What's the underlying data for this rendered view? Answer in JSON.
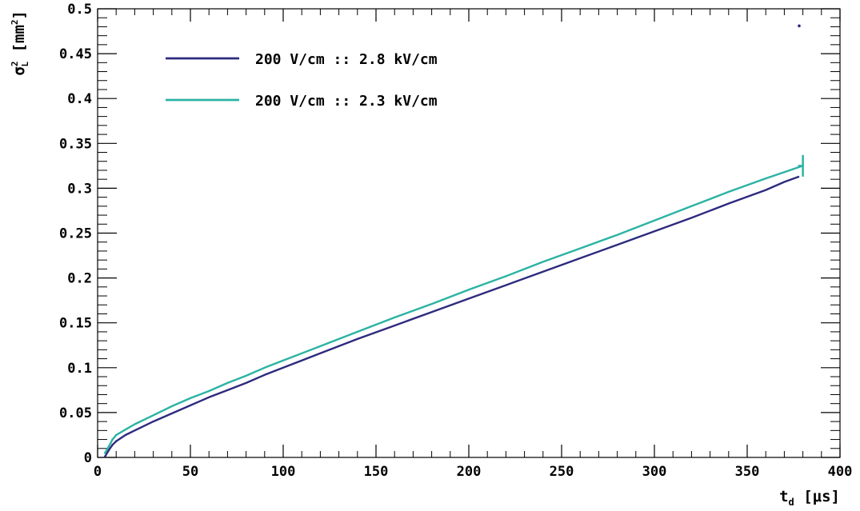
{
  "chart_data": {
    "type": "line",
    "xlabel": {
      "main": "t",
      "sub": "d",
      "unit": "[μs]"
    },
    "ylabel": {
      "main": "σ",
      "sup": "2",
      "sub": "L",
      "unit_open": "[mm",
      "unit_sup": "2",
      "unit_close": "]"
    },
    "xlim": [
      0,
      400
    ],
    "ylim": [
      0,
      0.5
    ],
    "xticks": [
      0,
      50,
      100,
      150,
      200,
      250,
      300,
      350,
      400
    ],
    "xtick_labels": [
      "0",
      "50",
      "100",
      "150",
      "200",
      "250",
      "300",
      "350",
      "400"
    ],
    "yticks": [
      0,
      0.05,
      0.1,
      0.15,
      0.2,
      0.25,
      0.3,
      0.35,
      0.4,
      0.45,
      0.5
    ],
    "ytick_labels": [
      "0",
      "0.05",
      "0.1",
      "0.15",
      "0.2",
      "0.25",
      "0.3",
      "0.35",
      "0.4",
      "0.45",
      "0.5"
    ],
    "grid": false,
    "legend_position": "top-left",
    "series": [
      {
        "name": "200 V/cm :: 2.8 kV/cm",
        "color": "#2e2a7e",
        "x": [
          4,
          6,
          8,
          10,
          15,
          20,
          30,
          40,
          50,
          60,
          70,
          80,
          90,
          100,
          120,
          140,
          160,
          180,
          200,
          220,
          240,
          260,
          280,
          300,
          320,
          340,
          360,
          370,
          378
        ],
        "y": [
          0.001,
          0.008,
          0.014,
          0.018,
          0.025,
          0.03,
          0.04,
          0.049,
          0.058,
          0.067,
          0.075,
          0.083,
          0.092,
          0.1,
          0.116,
          0.132,
          0.147,
          0.162,
          0.177,
          0.192,
          0.207,
          0.222,
          0.237,
          0.252,
          0.267,
          0.283,
          0.298,
          0.307,
          0.313
        ],
        "outlier": {
          "x": 378,
          "y": 0.481
        }
      },
      {
        "name": "200 V/cm :: 2.3 kV/cm",
        "color": "#2bb3a3",
        "x": [
          4,
          6,
          8,
          10,
          15,
          20,
          30,
          40,
          50,
          60,
          70,
          80,
          90,
          100,
          120,
          140,
          160,
          180,
          200,
          220,
          240,
          260,
          280,
          300,
          320,
          340,
          360,
          370,
          380
        ],
        "y": [
          0.005,
          0.012,
          0.02,
          0.025,
          0.031,
          0.037,
          0.047,
          0.057,
          0.066,
          0.074,
          0.083,
          0.091,
          0.1,
          0.108,
          0.124,
          0.14,
          0.156,
          0.171,
          0.187,
          0.202,
          0.218,
          0.233,
          0.248,
          0.264,
          0.28,
          0.296,
          0.311,
          0.318,
          0.325
        ],
        "error_bar": {
          "x": 380,
          "y": 0.325,
          "ylow": 0.313,
          "yhigh": 0.337
        }
      }
    ]
  }
}
